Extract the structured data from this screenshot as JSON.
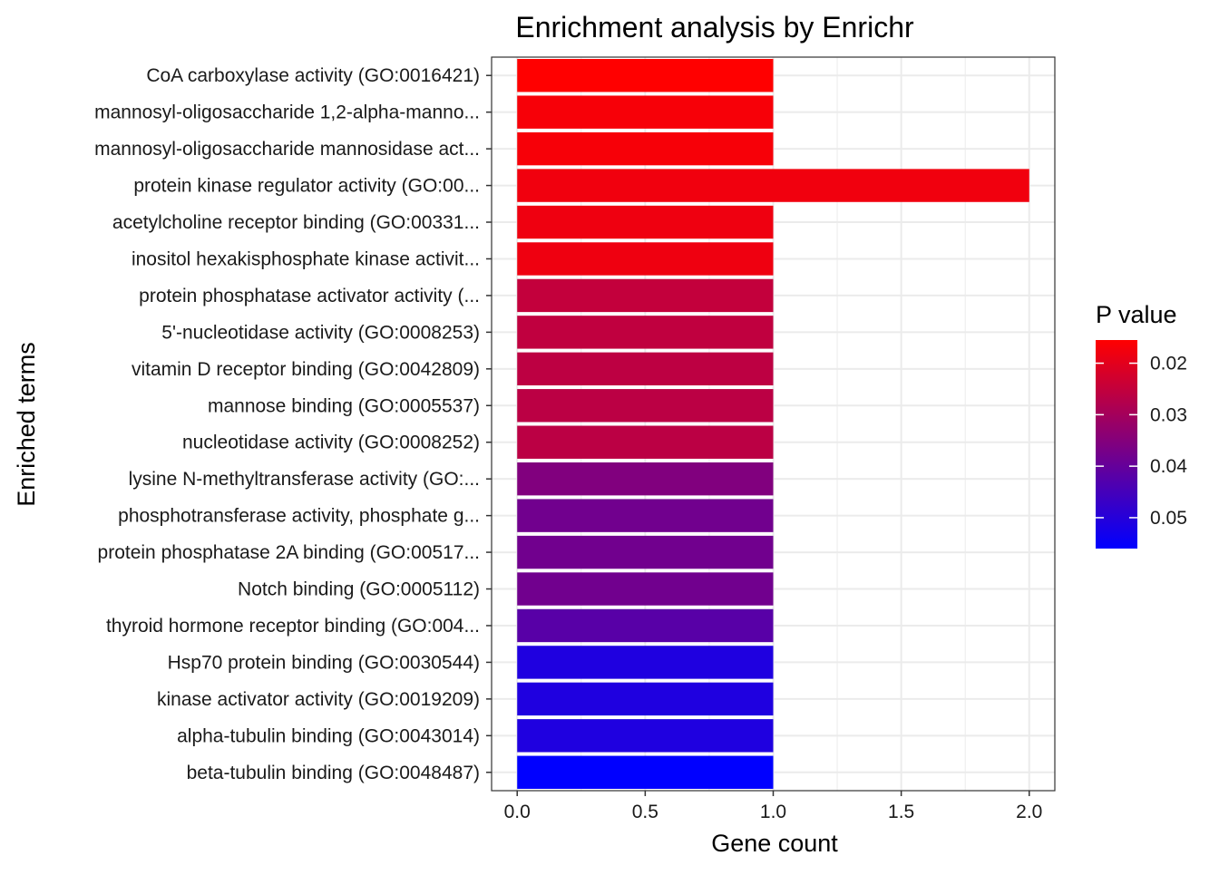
{
  "chart_data": {
    "type": "bar",
    "orientation": "horizontal",
    "title": "Enrichment analysis by Enrichr",
    "xlabel": "Gene count",
    "ylabel": "Enriched terms",
    "xlim": [
      -0.1,
      2.1
    ],
    "x_ticks": [
      0.0,
      0.5,
      1.0,
      1.5,
      2.0
    ],
    "x_tick_labels": [
      "0.0",
      "0.5",
      "1.0",
      "1.5",
      "2.0"
    ],
    "grid": true,
    "categories": [
      "CoA carboxylase activity (GO:0016421)",
      "mannosyl-oligosaccharide 1,2-alpha-manno...",
      "mannosyl-oligosaccharide mannosidase act...",
      "protein kinase regulator activity (GO:00...",
      "acetylcholine receptor binding (GO:00331...",
      "inositol hexakisphosphate kinase activit...",
      "protein phosphatase activator activity (...",
      "5'-nucleotidase activity (GO:0008253)",
      "vitamin D receptor binding (GO:0042809)",
      "mannose binding (GO:0005537)",
      "nucleotidase activity (GO:0008252)",
      "lysine N-methyltransferase activity (GO:...",
      "phosphotransferase activity, phosphate g...",
      "protein phosphatase 2A binding (GO:00517...",
      "Notch binding (GO:0005112)",
      "thyroid hormone receptor binding (GO:004...",
      "Hsp70 protein binding (GO:0030544)",
      "kinase activator activity (GO:0019209)",
      "alpha-tubulin binding (GO:0043014)",
      "beta-tubulin binding (GO:0048487)"
    ],
    "values": [
      1,
      1,
      1,
      2,
      1,
      1,
      1,
      1,
      1,
      1,
      1,
      1,
      1,
      1,
      1,
      1,
      1,
      1,
      1,
      1
    ],
    "p_values": [
      0.0155,
      0.0168,
      0.0168,
      0.0178,
      0.018,
      0.018,
      0.025,
      0.0255,
      0.026,
      0.0263,
      0.0263,
      0.0355,
      0.038,
      0.038,
      0.038,
      0.042,
      0.051,
      0.051,
      0.051,
      0.056
    ],
    "legend": {
      "title": "P value",
      "placement": "right",
      "range": [
        0.0155,
        0.056
      ],
      "low_color": "#FF0000",
      "high_color": "#0000FF",
      "ticks": [
        0.02,
        0.03,
        0.04,
        0.05
      ],
      "tick_labels": [
        "0.02",
        "0.03",
        "0.04",
        "0.05"
      ]
    }
  }
}
